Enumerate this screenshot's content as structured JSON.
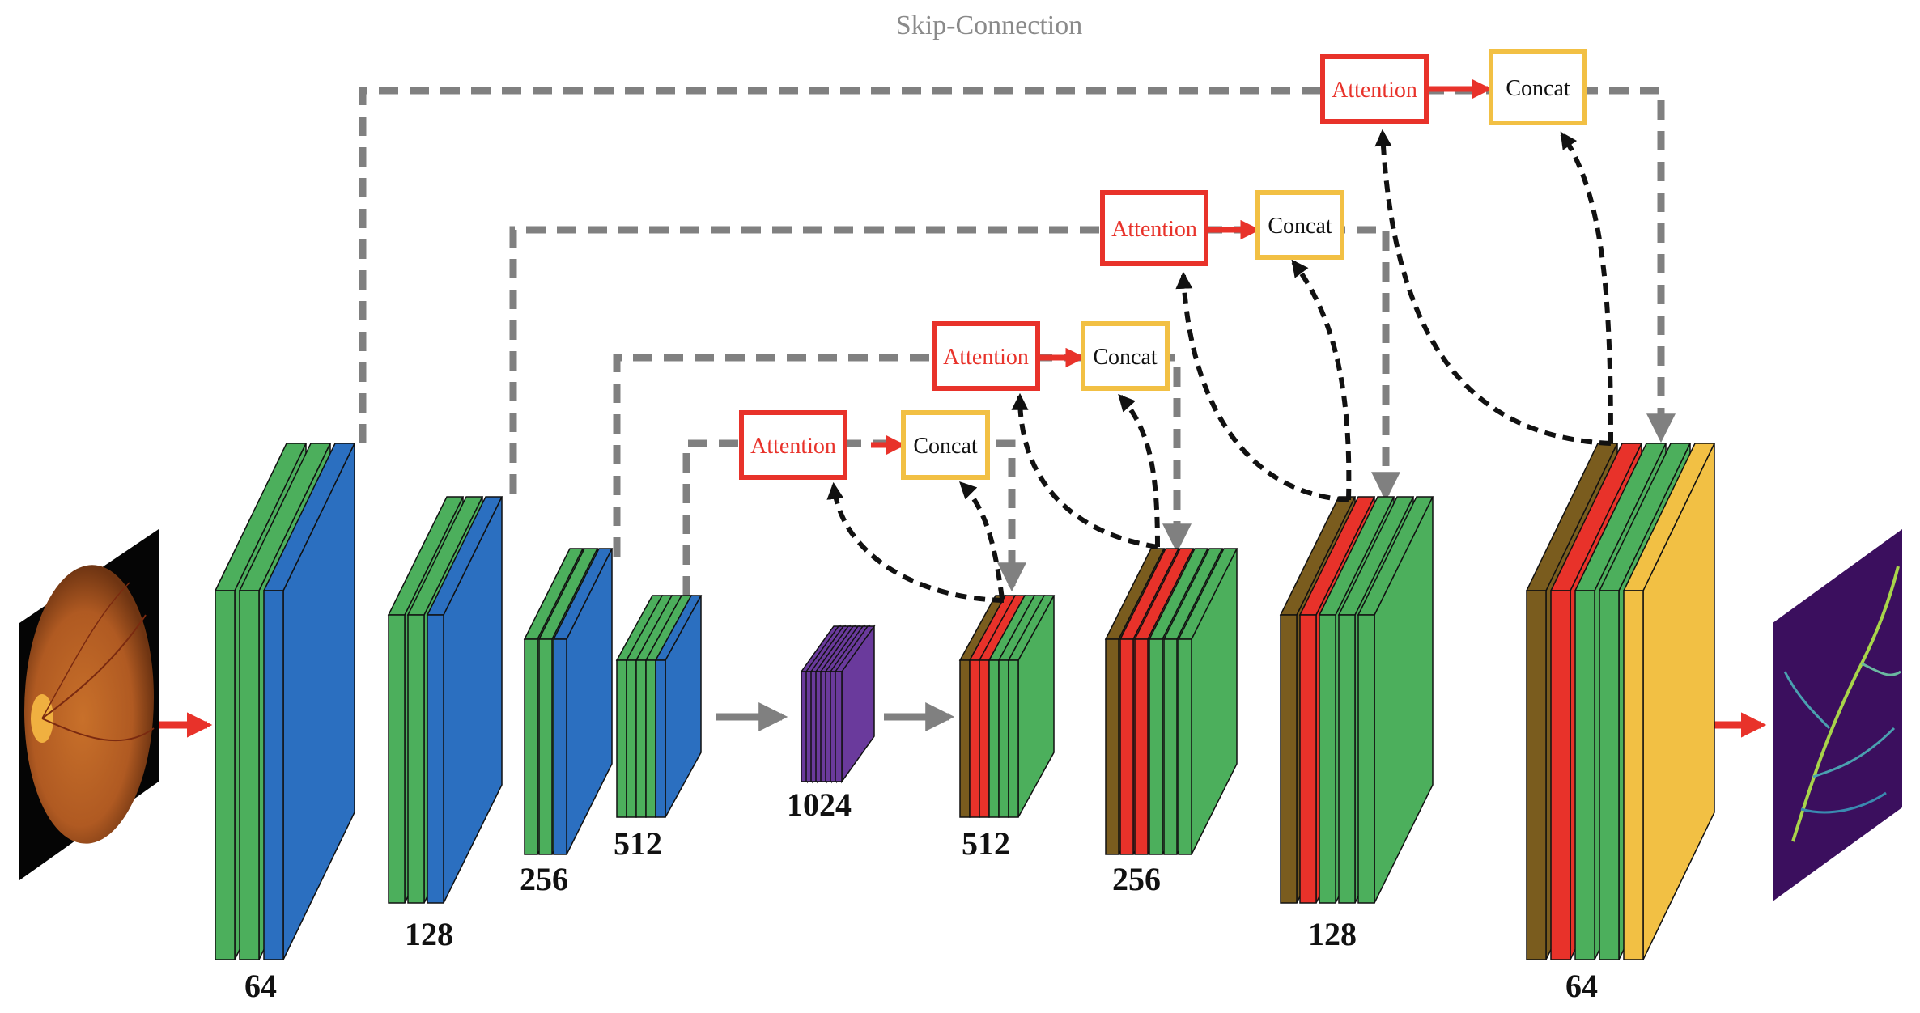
{
  "title": "Skip-Connection",
  "colors": {
    "conv": "#4caf5c",
    "pool": "#2b6fc0",
    "bottleneck": "#6a3a9c",
    "up": "#7a5c1e",
    "attention": "#e8322a",
    "concat": "#f2c044",
    "skip": "#808080",
    "gating": "#111111",
    "flow": "#e8322a"
  },
  "encoder_labels": [
    "64",
    "128",
    "256",
    "512"
  ],
  "bottleneck_label": "1024",
  "decoder_labels": [
    "512",
    "256",
    "128",
    "64"
  ],
  "attention_label": "Attention",
  "concat_label": "Concat",
  "input_image": "retinal-fundus-image",
  "output_image": "vessel-segmentation-map"
}
